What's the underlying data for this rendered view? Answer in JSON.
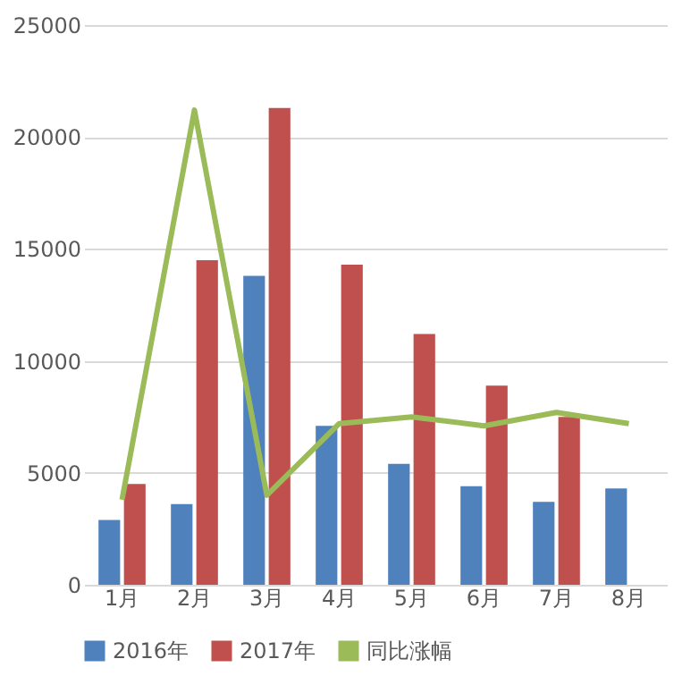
{
  "chart_data": {
    "type": "bar",
    "categories": [
      "1月",
      "2月",
      "3月",
      "4月",
      "5月",
      "6月",
      "7月",
      "8月"
    ],
    "series": [
      {
        "name": "2016年",
        "color": "#4f81bd",
        "values": [
          2900,
          3600,
          13800,
          7100,
          5400,
          4400,
          3700,
          4300
        ]
      },
      {
        "name": "2017年",
        "color": "#c0504d",
        "values": [
          4500,
          14500,
          21300,
          14300,
          11200,
          8900,
          7500,
          null
        ]
      },
      {
        "name": "同比涨幅",
        "type": "line",
        "color": "#9bbb59",
        "values": [
          3800,
          21200,
          4000,
          7200,
          7500,
          7100,
          7700,
          7200
        ]
      }
    ],
    "ylim": [
      0,
      25000
    ],
    "yticks": [
      0,
      5000,
      10000,
      15000,
      20000,
      25000
    ],
    "grid": "y",
    "legend": "bottom",
    "marker": "none"
  }
}
